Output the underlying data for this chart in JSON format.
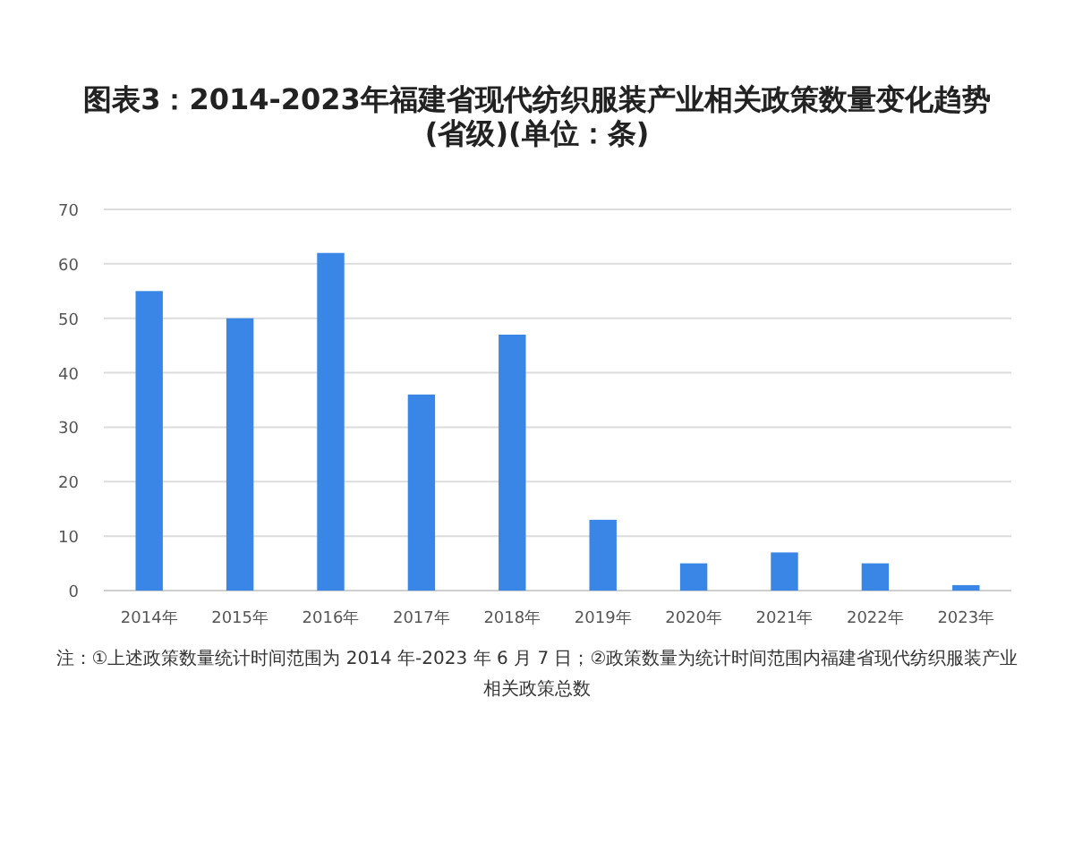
{
  "chart_data": {
    "type": "bar",
    "title": "图表3：2014-2023年福建省现代纺织服装产业相关政策数量变化趋势(省级)(单位：条)",
    "categories": [
      "2014年",
      "2015年",
      "2016年",
      "2017年",
      "2018年",
      "2019年",
      "2020年",
      "2021年",
      "2022年",
      "2023年"
    ],
    "values": [
      55,
      50,
      62,
      36,
      47,
      13,
      5,
      7,
      5,
      1
    ],
    "color": "#3a86e6",
    "ylim": [
      0,
      70
    ],
    "yticks": [
      0,
      10,
      20,
      30,
      40,
      50,
      60,
      70
    ],
    "grid": "y",
    "annotations": [
      "注：①上述政策数量统计时间范围为 2014 年-2023 年 6 月 7 日；②政策数量为统计时间范围内福建省现代纺织服装产业相关政策总数"
    ]
  }
}
